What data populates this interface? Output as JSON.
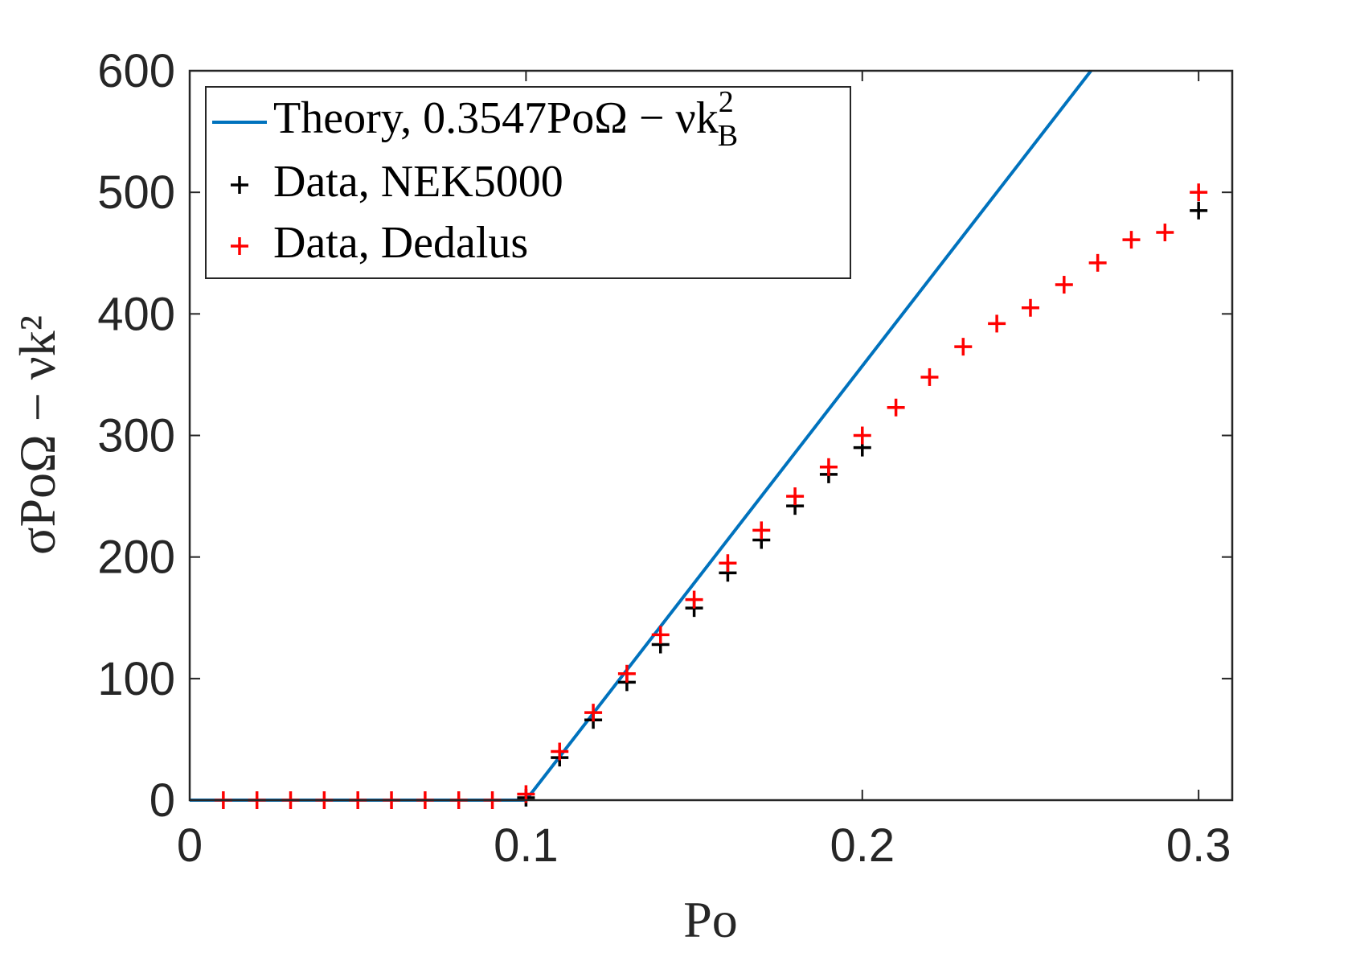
{
  "chart_data": {
    "type": "scatter",
    "title": "",
    "xlabel": "Po",
    "ylabel": "σPoΩ − νk²",
    "xlim": [
      0,
      0.31
    ],
    "ylim": [
      0,
      600
    ],
    "xticks": [
      0,
      0.1,
      0.2,
      0.3
    ],
    "xtick_labels": [
      "0",
      "0.1",
      "0.2",
      "0.3"
    ],
    "yticks": [
      0,
      100,
      200,
      300,
      400,
      500,
      600
    ],
    "ytick_labels": [
      "0",
      "100",
      "200",
      "300",
      "400",
      "500",
      "600"
    ],
    "grid": false,
    "legend_position": "top-left",
    "series": [
      {
        "name": "Theory, 0.3547PoΩ − νk²_B",
        "legend_main": "Theory, 0.3547PoΩ − νk",
        "legend_sup": "2",
        "legend_sub": "B",
        "kind": "line",
        "color": "#0072BD",
        "x": [
          0.0,
          0.1,
          0.268
        ],
        "y": [
          0,
          0,
          600
        ]
      },
      {
        "name": "Data, NEK5000",
        "kind": "marker",
        "color": "#000000",
        "x": [
          0.1,
          0.11,
          0.12,
          0.13,
          0.14,
          0.15,
          0.16,
          0.17,
          0.18,
          0.19,
          0.2,
          0.3
        ],
        "y": [
          2,
          35,
          66,
          97,
          128,
          158,
          187,
          214,
          242,
          268,
          290,
          485
        ]
      },
      {
        "name": "Data, Dedalus",
        "kind": "marker",
        "color": "#FF0000",
        "x": [
          0.01,
          0.02,
          0.03,
          0.04,
          0.05,
          0.06,
          0.07,
          0.08,
          0.09,
          0.1,
          0.11,
          0.12,
          0.13,
          0.14,
          0.15,
          0.16,
          0.17,
          0.18,
          0.19,
          0.2,
          0.21,
          0.22,
          0.23,
          0.24,
          0.25,
          0.26,
          0.27,
          0.28,
          0.29,
          0.3
        ],
        "y": [
          0,
          0,
          0,
          0,
          0,
          0,
          0,
          0,
          0,
          5,
          40,
          72,
          104,
          136,
          165,
          195,
          222,
          250,
          274,
          300,
          323,
          348,
          373,
          392,
          405,
          424,
          442,
          461,
          467,
          500
        ]
      }
    ]
  }
}
